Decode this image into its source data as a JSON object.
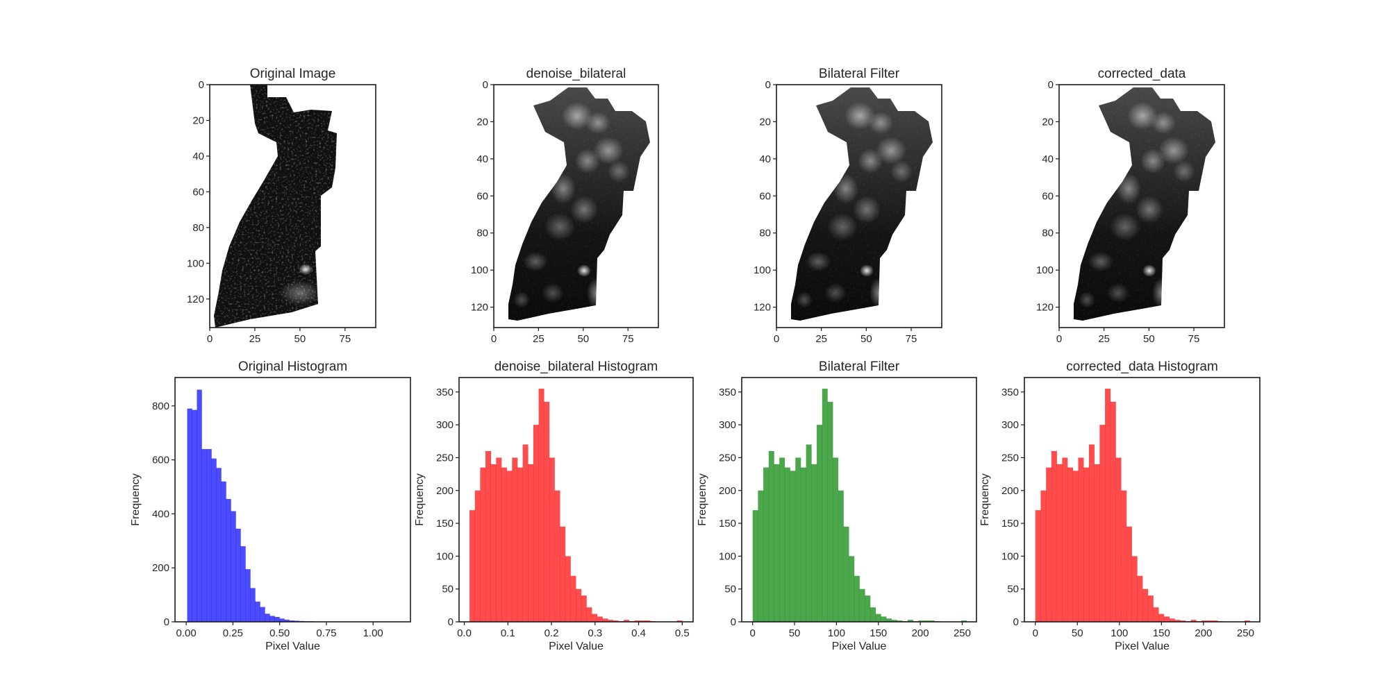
{
  "figure": {
    "background": "#ffffff",
    "layout": "2 rows x 4 columns"
  },
  "chart_data": [
    {
      "id": "img0",
      "type": "heatmap",
      "title": "Original Image",
      "colormap": "gray",
      "variant": "noisy",
      "image_size": [
        92,
        136
      ],
      "xlim": [
        0,
        92
      ],
      "ylim": [
        136,
        0
      ],
      "xticks": [
        0,
        25,
        50,
        75
      ],
      "yticks": [
        0,
        20,
        40,
        60,
        80,
        100,
        120
      ]
    },
    {
      "id": "img1",
      "type": "heatmap",
      "title": "denoise_bilateral",
      "colormap": "gray",
      "variant": "smooth",
      "image_size": [
        92,
        131
      ],
      "xlim": [
        0,
        92
      ],
      "ylim": [
        131,
        0
      ],
      "xticks": [
        0,
        25,
        50,
        75
      ],
      "yticks": [
        0,
        20,
        40,
        60,
        80,
        100,
        120
      ]
    },
    {
      "id": "img2",
      "type": "heatmap",
      "title": "Bilateral Filter",
      "colormap": "gray",
      "variant": "smooth",
      "image_size": [
        92,
        131
      ],
      "xlim": [
        0,
        92
      ],
      "ylim": [
        131,
        0
      ],
      "xticks": [
        0,
        25,
        50,
        75
      ],
      "yticks": [
        0,
        20,
        40,
        60,
        80,
        100,
        120
      ]
    },
    {
      "id": "img3",
      "type": "heatmap",
      "title": "corrected_data",
      "colormap": "gray",
      "variant": "smooth",
      "image_size": [
        92,
        131
      ],
      "xlim": [
        0,
        92
      ],
      "ylim": [
        131,
        0
      ],
      "xticks": [
        0,
        25,
        50,
        75
      ],
      "yticks": [
        0,
        20,
        40,
        60,
        80,
        100,
        120
      ]
    },
    {
      "id": "hist0",
      "type": "bar",
      "title": "Original Histogram",
      "xlabel": "Pixel Value",
      "ylabel": "Frequency",
      "color": "#0000ff",
      "alpha": 0.7,
      "xlim": [
        -0.06,
        1.2
      ],
      "ylim": [
        0,
        905
      ],
      "xticks": [
        0.0,
        0.25,
        0.5,
        0.75,
        1.0
      ],
      "xtick_labels": [
        "0.00",
        "0.25",
        "0.50",
        "0.75",
        "1.00"
      ],
      "yticks": [
        0,
        200,
        400,
        600,
        800
      ],
      "bin_start": 0.005,
      "bin_width": 0.026,
      "values": [
        790,
        785,
        860,
        640,
        640,
        605,
        570,
        520,
        455,
        410,
        345,
        280,
        195,
        125,
        75,
        55,
        30,
        22,
        18,
        12,
        8,
        5,
        4,
        3,
        2,
        2,
        1,
        1,
        1,
        1,
        1,
        1,
        0,
        0,
        0,
        0,
        0,
        0,
        0,
        0
      ]
    },
    {
      "id": "hist1",
      "type": "bar",
      "title": "denoise_bilateral Histogram",
      "xlabel": "Pixel Value",
      "ylabel": "Frequency",
      "color": "#ff0000",
      "alpha": 0.7,
      "xlim": [
        -0.012,
        0.525
      ],
      "ylim": [
        0,
        372
      ],
      "xticks": [
        0.0,
        0.1,
        0.2,
        0.3,
        0.4,
        0.5
      ],
      "xtick_labels": [
        "0.0",
        "0.1",
        "0.2",
        "0.3",
        "0.4",
        "0.5"
      ],
      "yticks": [
        0,
        50,
        100,
        150,
        200,
        250,
        300,
        350
      ],
      "bin_start": 0.012,
      "bin_width": 0.0122,
      "values": [
        170,
        200,
        235,
        260,
        240,
        250,
        235,
        230,
        250,
        235,
        270,
        240,
        300,
        355,
        335,
        250,
        200,
        145,
        100,
        70,
        50,
        40,
        22,
        12,
        8,
        5,
        3,
        2,
        1,
        3,
        1,
        2,
        2,
        2,
        1,
        0,
        0,
        0,
        0,
        2
      ]
    },
    {
      "id": "hist2",
      "type": "bar",
      "title": "Bilateral Filter",
      "xlabel": "Pixel Value",
      "ylabel": "Frequency",
      "color": "#008000",
      "alpha": 0.7,
      "xlim": [
        -13,
        267
      ],
      "ylim": [
        0,
        372
      ],
      "xticks": [
        0,
        50,
        100,
        150,
        200,
        250
      ],
      "xtick_labels": [
        "0",
        "50",
        "100",
        "150",
        "200",
        "250"
      ],
      "yticks": [
        0,
        50,
        100,
        150,
        200,
        250,
        300,
        350
      ],
      "bin_start": 0,
      "bin_width": 6.375,
      "values": [
        170,
        200,
        235,
        260,
        240,
        250,
        235,
        230,
        250,
        235,
        270,
        240,
        300,
        355,
        335,
        250,
        200,
        145,
        100,
        70,
        50,
        40,
        22,
        12,
        8,
        5,
        3,
        2,
        1,
        3,
        1,
        2,
        2,
        2,
        1,
        0,
        0,
        0,
        0,
        2
      ]
    },
    {
      "id": "hist3",
      "type": "bar",
      "title": "corrected_data Histogram",
      "xlabel": "Pixel Value",
      "ylabel": "Frequency",
      "color": "#ff0000",
      "alpha": 0.7,
      "xlim": [
        -13,
        267
      ],
      "ylim": [
        0,
        372
      ],
      "xticks": [
        0,
        50,
        100,
        150,
        200,
        250
      ],
      "xtick_labels": [
        "0",
        "50",
        "100",
        "150",
        "200",
        "250"
      ],
      "yticks": [
        0,
        50,
        100,
        150,
        200,
        250,
        300,
        350
      ],
      "bin_start": 0,
      "bin_width": 6.375,
      "values": [
        170,
        200,
        235,
        260,
        240,
        250,
        235,
        230,
        250,
        235,
        270,
        240,
        300,
        355,
        335,
        250,
        200,
        145,
        100,
        70,
        50,
        40,
        22,
        12,
        8,
        5,
        3,
        2,
        1,
        3,
        1,
        2,
        2,
        2,
        1,
        0,
        0,
        0,
        0,
        2
      ]
    }
  ]
}
